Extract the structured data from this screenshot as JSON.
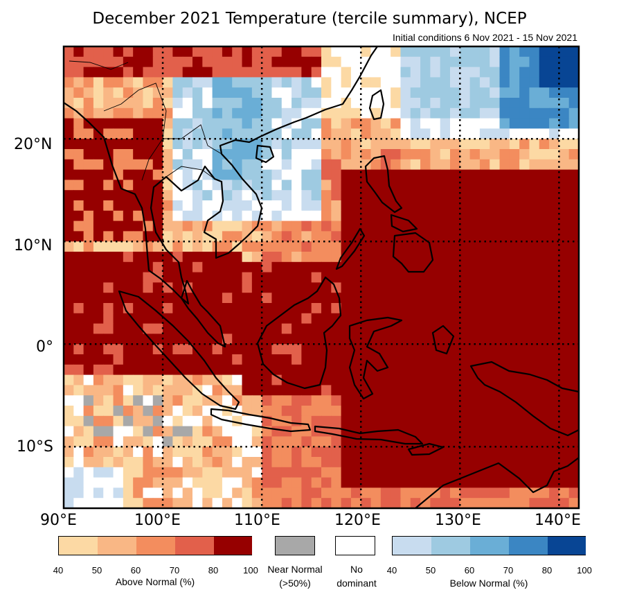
{
  "title": "December 2021 Temperature (tercile summary), NCEP",
  "subtitle": "Initial conditions 6 Nov 2021 - 15 Nov 2021",
  "map": {
    "lon_range": [
      90,
      142
    ],
    "lat_range": [
      -16,
      29
    ],
    "grid_lines": true,
    "lon_labels": [
      "90°E",
      "100°E",
      "110°E",
      "120°E",
      "130°E",
      "140°E"
    ],
    "lat_labels": [
      "20°N",
      "10°N",
      "0°",
      "10°S"
    ],
    "colors": {
      "above": [
        "#fcd9a4",
        "#f9b785",
        "#f38d5e",
        "#e2604b",
        "#960000"
      ],
      "near_normal": "#a8a8a8",
      "no_dominant": "#ffffff",
      "below": [
        "#c8dcef",
        "#9ecae1",
        "#6aaed6",
        "#3b86c3",
        "#084594"
      ]
    }
  },
  "legend": {
    "above": {
      "ticks": [
        "40",
        "50",
        "60",
        "70",
        "80",
        "100"
      ],
      "label": "Above Normal (%)"
    },
    "near_normal": {
      "label_line1": "Near Normal",
      "label_line2": "(>50%)"
    },
    "no_dominant": {
      "label_line1": "No",
      "label_line2": "dominant"
    },
    "below": {
      "ticks": [
        "40",
        "50",
        "60",
        "70",
        "80",
        "100"
      ],
      "label": "Below Normal (%)"
    }
  }
}
